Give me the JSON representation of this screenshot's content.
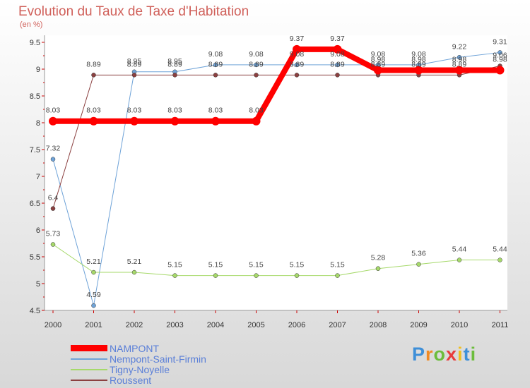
{
  "header": {
    "title": "Evolution du Taux de Taxe d'Habitation",
    "unit": "(en %)"
  },
  "logo": {
    "letters": [
      "P",
      "r",
      "o",
      "x",
      "i",
      "t",
      "i"
    ],
    "colors": [
      "#3e8fd8",
      "#f08a24",
      "#6cbd3c",
      "#e83c3c",
      "#f0c020",
      "#3e8fd8",
      "#6cbd3c"
    ]
  },
  "chart_data": {
    "type": "line",
    "title": "Evolution du Taux de Taxe d'Habitation",
    "ylabel": "(en %)",
    "xlabel": "",
    "categories": [
      "2000",
      "2001",
      "2002",
      "2003",
      "2004",
      "2005",
      "2006",
      "2007",
      "2008",
      "2009",
      "2010",
      "2011"
    ],
    "ylim": [
      4.5,
      9.5
    ],
    "yticks": [
      "4.5",
      "5",
      "5.5",
      "6",
      "6.5",
      "7",
      "7.5",
      "8",
      "8.5",
      "9",
      "9.5"
    ],
    "grid": false,
    "legend_position": "bottom-left",
    "series": [
      {
        "name": "NAMPONT",
        "color": "#ff0000",
        "width": 8,
        "values": [
          8.03,
          8.03,
          8.03,
          8.03,
          8.03,
          8.03,
          9.37,
          9.37,
          8.98,
          8.98,
          8.98,
          8.98
        ],
        "labels": [
          "8.03",
          "8.03",
          "8.03",
          "8.03",
          "8.03",
          "8.03",
          "9.37",
          "9.37",
          "8.98",
          "8.98",
          "8.98",
          "8.98"
        ]
      },
      {
        "name": "Nempont-Saint-Firmin",
        "color": "#6fa3d8",
        "width": 1,
        "values": [
          7.32,
          4.59,
          8.95,
          8.95,
          9.08,
          9.08,
          9.08,
          9.08,
          9.08,
          9.08,
          9.22,
          9.31
        ],
        "labels": [
          "7.32",
          "4.59",
          "8.95",
          "8.95",
          "9.08",
          "9.08",
          "9.08",
          "9.08",
          "9.08",
          "9.08",
          "9.22",
          "9.31"
        ]
      },
      {
        "name": "Tigny-Noyelle",
        "color": "#a6d96a",
        "width": 1,
        "values": [
          5.73,
          5.21,
          5.21,
          5.15,
          5.15,
          5.15,
          5.15,
          5.15,
          5.28,
          5.36,
          5.44,
          5.44
        ],
        "labels": [
          "5.73",
          "5.21",
          "5.21",
          "5.15",
          "5.15",
          "5.15",
          "5.15",
          "5.15",
          "5.28",
          "5.36",
          "5.44",
          "5.44"
        ]
      },
      {
        "name": "Roussent",
        "color": "#8b4040",
        "width": 1,
        "values": [
          6.4,
          8.89,
          8.89,
          8.89,
          8.89,
          8.89,
          8.89,
          8.89,
          8.89,
          8.89,
          8.89,
          9.06
        ],
        "labels": [
          "6.4",
          "8.89",
          "8.89",
          "8.89",
          "8.89",
          "8.89",
          "8.89",
          "8.89",
          "8.89",
          "8.89",
          "8.89",
          "9.06"
        ]
      }
    ]
  }
}
